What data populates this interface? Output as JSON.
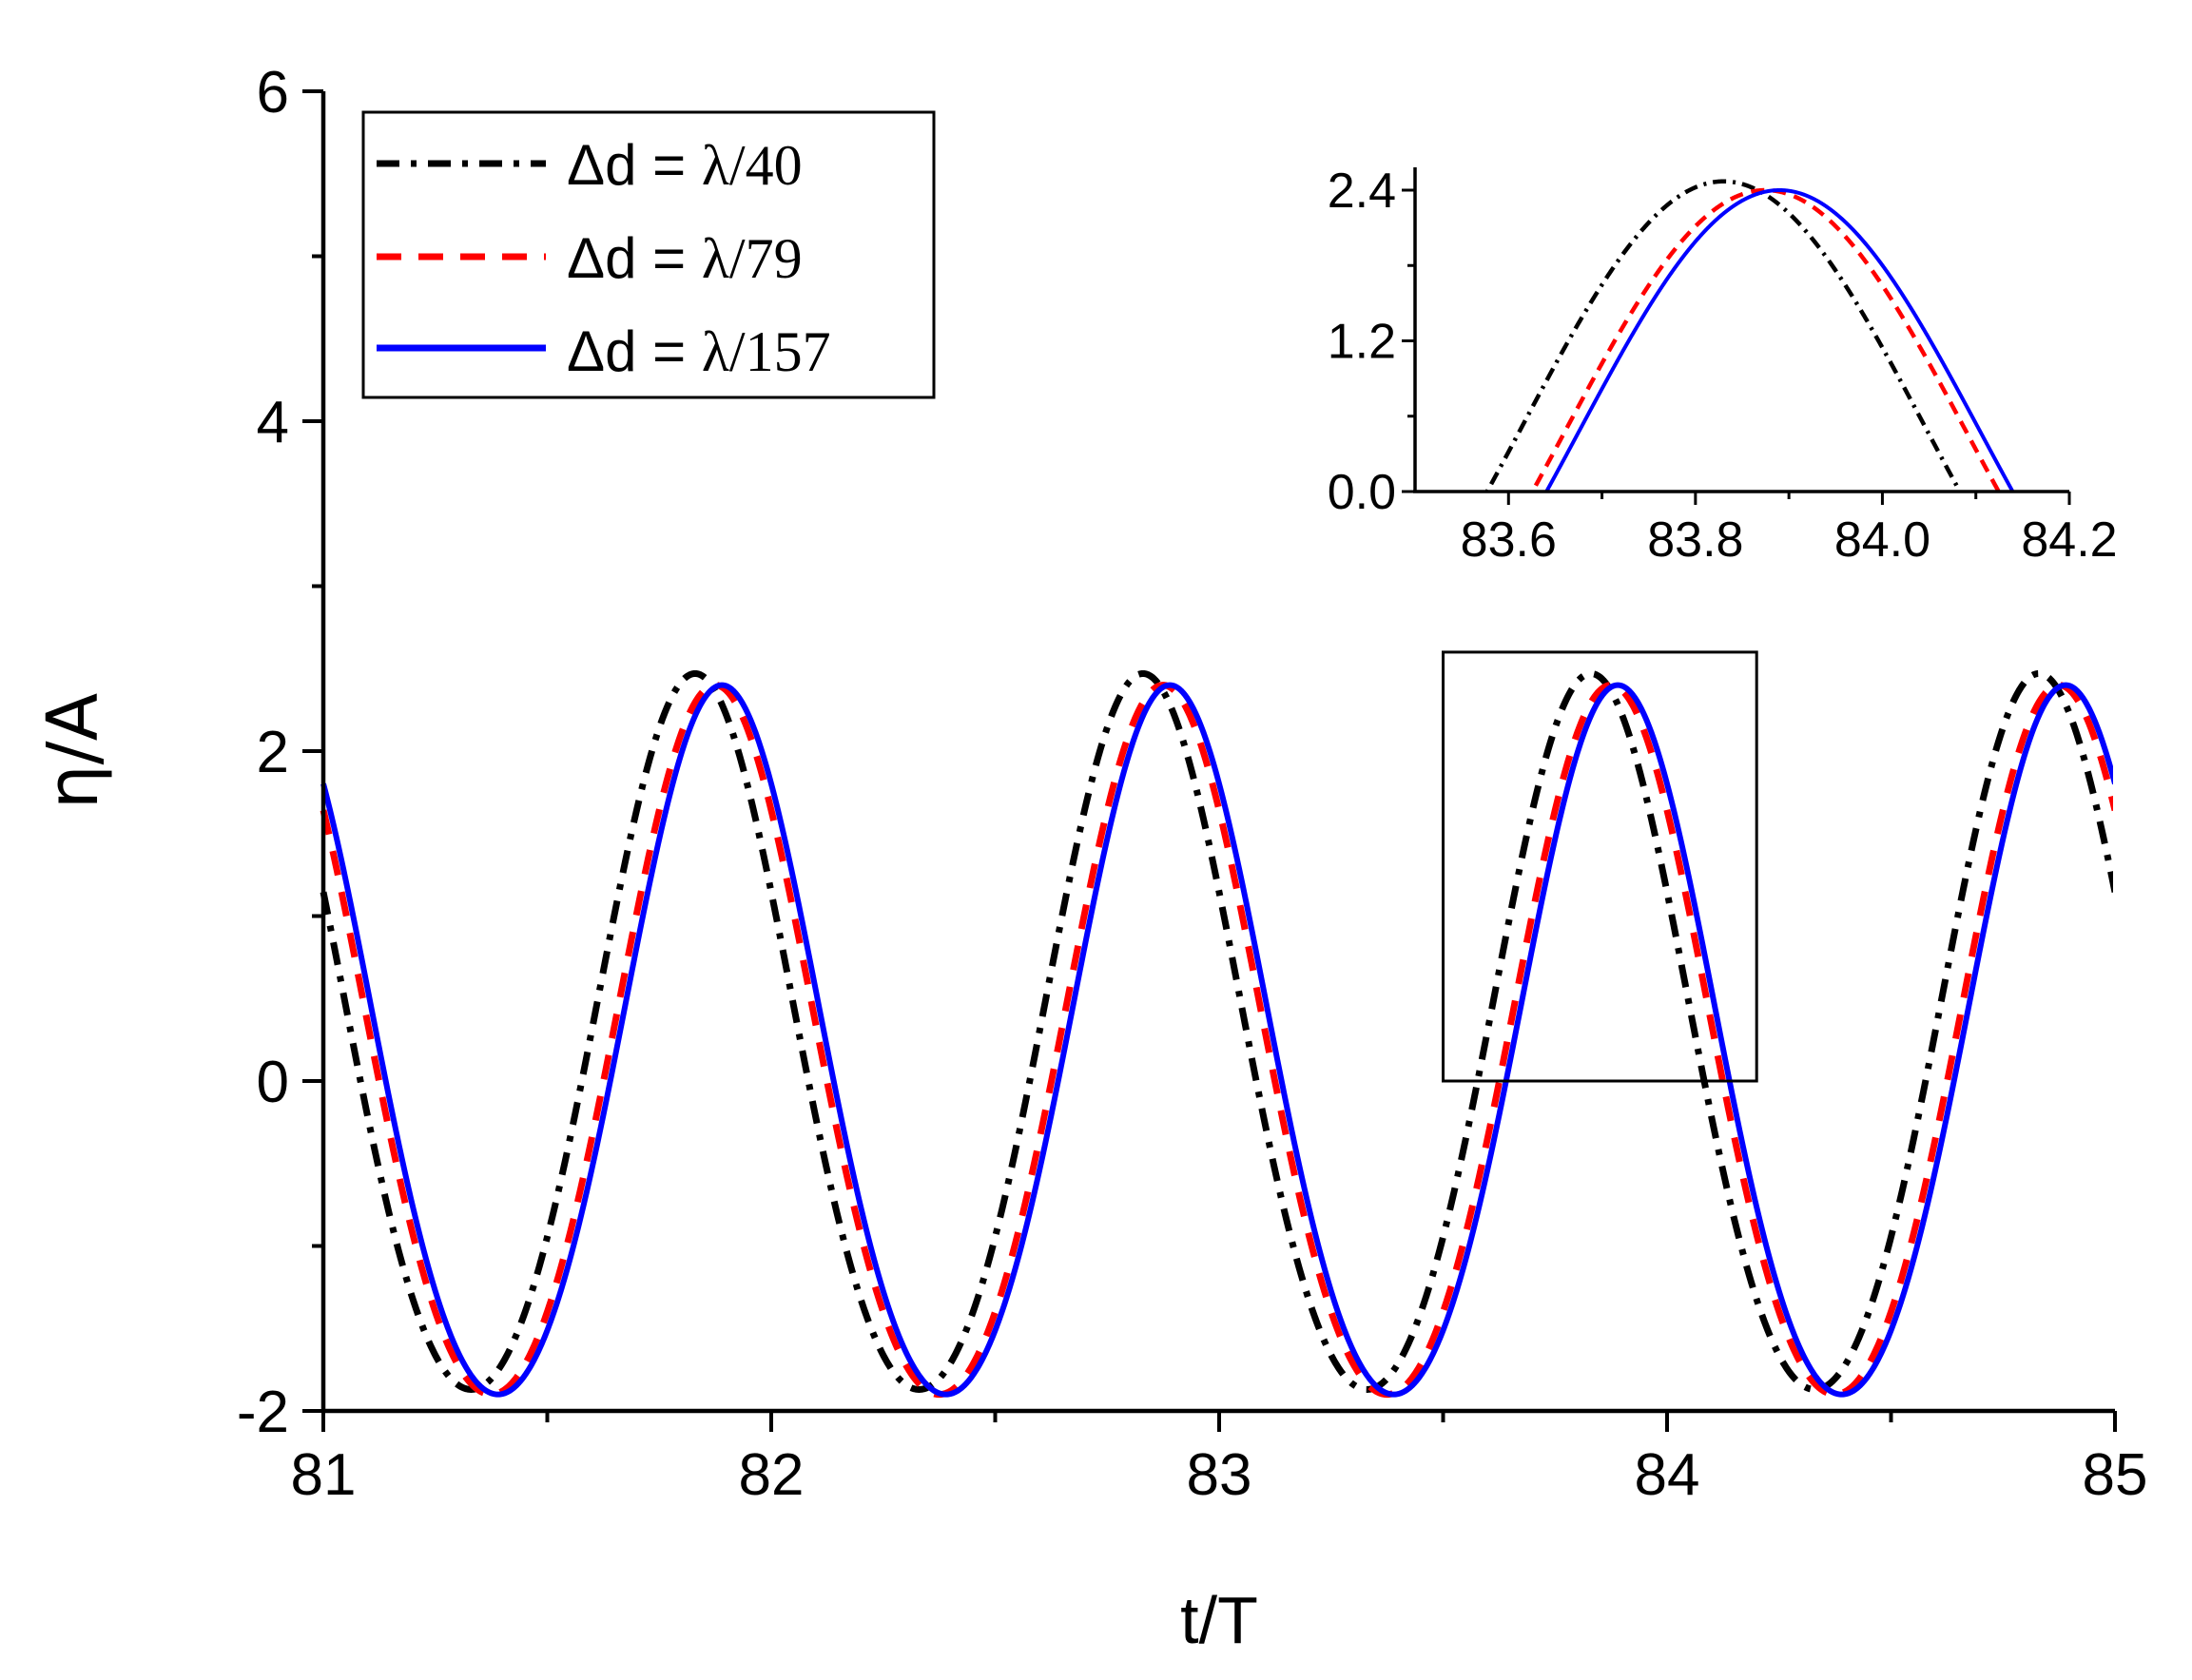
{
  "chart_data": {
    "type": "line",
    "xlabel": "t/T",
    "ylabel": "η/A",
    "xlim": [
      81,
      85
    ],
    "ylim": [
      -2,
      6
    ],
    "x_ticks": [
      "81",
      "82",
      "83",
      "84",
      "85"
    ],
    "y_ticks": [
      "-2",
      "0",
      "2",
      "4",
      "6"
    ],
    "legend_position": "top-left",
    "series": [
      {
        "name": "Δd = λ/40",
        "color": "#000000",
        "style": "dash-dot",
        "label_prefix": "Δd = ",
        "label_value": "λ/40",
        "phase_peak": 0.83,
        "max": 2.47,
        "min": -1.87
      },
      {
        "name": "Δd = λ/79",
        "color": "#ff0000",
        "style": "dashed",
        "label_prefix": "Δd = ",
        "label_value": "λ/79",
        "phase_peak": 0.875,
        "max": 2.4,
        "min": -1.9
      },
      {
        "name": "Δd = λ/157",
        "color": "#0000ff",
        "style": "solid",
        "label_prefix": "Δd = ",
        "label_value": "λ/157",
        "phase_peak": 0.89,
        "max": 2.4,
        "min": -1.9
      }
    ],
    "zoom_region": {
      "x": [
        83.5,
        84.2
      ],
      "y": [
        0,
        2.6
      ]
    },
    "inset": {
      "xlim": [
        83.5,
        84.2
      ],
      "ylim": [
        0,
        2.6
      ],
      "x_ticks": [
        "83.6",
        "83.8",
        "84.0",
        "84.2"
      ],
      "y_ticks": [
        "0.0",
        "1.2",
        "2.4"
      ]
    }
  }
}
